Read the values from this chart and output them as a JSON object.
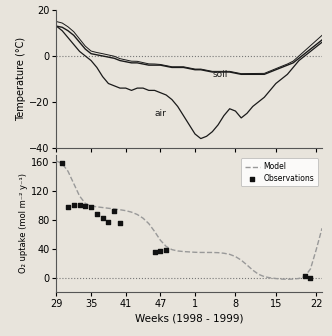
{
  "top_panel": {
    "ylabel": "Temperature (°C)",
    "ylim": [
      -40,
      20
    ],
    "yticks": [
      -40,
      -20,
      0,
      20
    ],
    "hline_y": 0,
    "soil_label": "soil",
    "air_label": "air"
  },
  "bottom_panel": {
    "ylabel": "O₂ uptake (mol m⁻² y⁻¹)",
    "ylim": [
      -20,
      170
    ],
    "yticks": [
      0,
      40,
      80,
      120,
      160
    ],
    "hline_y": 0,
    "legend_model": "Model",
    "legend_obs": "Observations"
  },
  "xlabel": "Weeks (1998 - 1999)",
  "xtick_labels": [
    "29",
    "35",
    "41",
    "47",
    "1",
    "8",
    "15",
    "22"
  ],
  "xtick_positions": [
    0,
    6,
    12,
    18,
    24,
    31,
    38,
    45
  ],
  "background_color": "#e8e4dc",
  "line_color": "#1a1a1a",
  "model_color": "#999999",
  "obs_color": "#111111",
  "dotted_color": "#777777"
}
